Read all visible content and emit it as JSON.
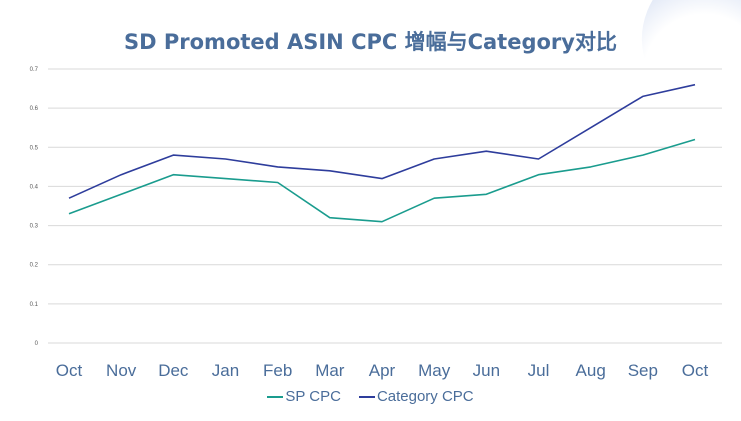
{
  "chart_data": {
    "type": "line",
    "title": "SD Promoted ASIN CPC 增幅与Category对比",
    "categories": [
      "Oct",
      "Nov",
      "Dec",
      "Jan",
      "Feb",
      "Mar",
      "Apr",
      "May",
      "Jun",
      "Jul",
      "Aug",
      "Sep",
      "Oct"
    ],
    "y_ticks": [
      "0",
      "0.1",
      "0.2",
      "0.3",
      "0.4",
      "0.5",
      "0.6",
      "0.7"
    ],
    "ylim": [
      0,
      0.7
    ],
    "grid": true,
    "legend_position": "bottom",
    "series": [
      {
        "name": "SP CPC",
        "color": "#1a9c8e",
        "values": [
          0.33,
          0.38,
          0.43,
          0.42,
          0.41,
          0.32,
          0.31,
          0.37,
          0.38,
          0.43,
          0.45,
          0.48,
          0.52
        ]
      },
      {
        "name": "Category CPC",
        "color": "#2e3d9c",
        "values": [
          0.37,
          0.43,
          0.48,
          0.47,
          0.45,
          0.44,
          0.42,
          0.47,
          0.49,
          0.47,
          0.55,
          0.63,
          0.66
        ]
      }
    ]
  }
}
